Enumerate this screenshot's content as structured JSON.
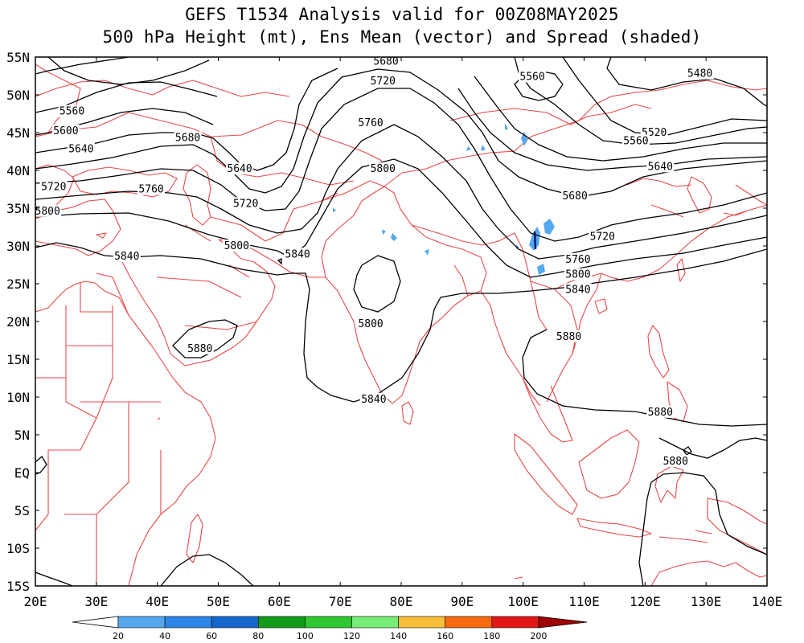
{
  "title": {
    "line1": "GEFS T1534 Analysis valid for 00Z08MAY2025",
    "line2": "500 hPa Height (mt), Ens Mean (vector) and Spread (shaded)"
  },
  "axes": {
    "lon_ticks": [
      "20E",
      "30E",
      "40E",
      "50E",
      "60E",
      "70E",
      "80E",
      "90E",
      "100E",
      "110E",
      "120E",
      "130E",
      "140E"
    ],
    "lat_ticks": [
      "55N",
      "50N",
      "45N",
      "40N",
      "35N",
      "30N",
      "25N",
      "20N",
      "15N",
      "10N",
      "5N",
      "EQ",
      "5S",
      "10S",
      "15S"
    ]
  },
  "contour_labels": [
    {
      "text": "5680",
      "lon": 77.5,
      "lat": 54.4
    },
    {
      "text": "5720",
      "lon": 77.0,
      "lat": 51.8
    },
    {
      "text": "5760",
      "lon": 75.0,
      "lat": 46.3
    },
    {
      "text": "5800",
      "lon": 77.0,
      "lat": 40.2
    },
    {
      "text": "5560",
      "lon": 26.0,
      "lat": 47.8
    },
    {
      "text": "5600",
      "lon": 25.0,
      "lat": 45.2
    },
    {
      "text": "5640",
      "lon": 27.5,
      "lat": 42.8
    },
    {
      "text": "5680",
      "lon": 45.0,
      "lat": 44.3
    },
    {
      "text": "5640",
      "lon": 53.5,
      "lat": 40.2
    },
    {
      "text": "5720",
      "lon": 23.0,
      "lat": 37.8
    },
    {
      "text": "5760",
      "lon": 39.0,
      "lat": 37.5
    },
    {
      "text": "5720",
      "lon": 54.5,
      "lat": 35.6
    },
    {
      "text": "5800",
      "lon": 22.0,
      "lat": 34.6
    },
    {
      "text": "5800",
      "lon": 53.0,
      "lat": 30.0
    },
    {
      "text": "5840",
      "lon": 35.0,
      "lat": 28.6
    },
    {
      "text": "5840",
      "lon": 63.0,
      "lat": 28.9
    },
    {
      "text": "5800",
      "lon": 75.0,
      "lat": 19.7
    },
    {
      "text": "5840",
      "lon": 75.5,
      "lat": 9.7
    },
    {
      "text": "5880",
      "lon": 47.0,
      "lat": 16.4
    },
    {
      "text": "5880",
      "lon": 107.5,
      "lat": 18.0
    },
    {
      "text": "5880",
      "lon": 122.5,
      "lat": 8.0
    },
    {
      "text": "5880",
      "lon": 125.0,
      "lat": 1.5
    },
    {
      "text": "5560",
      "lon": 101.5,
      "lat": 52.4
    },
    {
      "text": "5480",
      "lon": 129.0,
      "lat": 52.8
    },
    {
      "text": "5520",
      "lon": 121.5,
      "lat": 45.0
    },
    {
      "text": "5560",
      "lon": 118.5,
      "lat": 43.9
    },
    {
      "text": "5640",
      "lon": 122.5,
      "lat": 40.5
    },
    {
      "text": "5680",
      "lon": 108.5,
      "lat": 36.6
    },
    {
      "text": "5720",
      "lon": 113.0,
      "lat": 31.2
    },
    {
      "text": "5760",
      "lon": 109.0,
      "lat": 28.2
    },
    {
      "text": "5800",
      "lon": 109.0,
      "lat": 26.2
    },
    {
      "text": "5840",
      "lon": 109.0,
      "lat": 24.2
    }
  ],
  "colorbar": {
    "labels": [
      "20",
      "40",
      "60",
      "80",
      "100",
      "120",
      "140",
      "160",
      "180",
      "200"
    ],
    "colors": [
      "#ffffff",
      "#55a8ee",
      "#2e86e6",
      "#1766cc",
      "#139c1a",
      "#30c830",
      "#78ec78",
      "#f8c038",
      "#f86a10",
      "#e01818",
      "#a00000"
    ]
  },
  "colors": {
    "coastline": "#e8484a",
    "contour": "#000000",
    "spread_shade": "#55a8ee"
  }
}
